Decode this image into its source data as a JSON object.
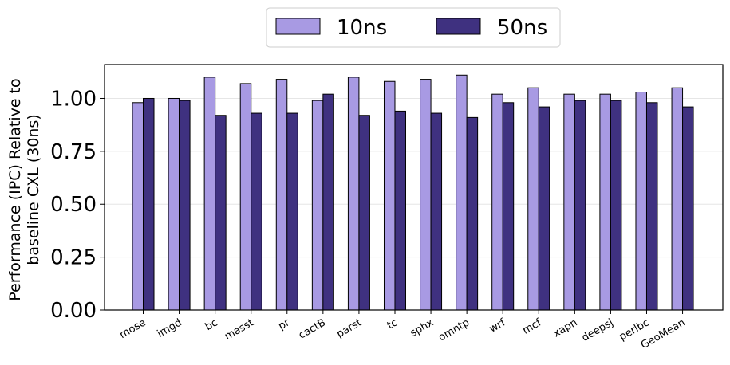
{
  "chart_data": {
    "type": "bar",
    "title": "",
    "xlabel": "",
    "ylabel_line1": "Performance (IPC) Relative to",
    "ylabel_line2": "baseline CXL (30ns)",
    "ylim": [
      0,
      1.16
    ],
    "yticks": [
      "0.00",
      "0.25",
      "0.50",
      "0.75",
      "1.00"
    ],
    "grid": true,
    "legend_position": "top-center",
    "categories": [
      "mose",
      "imgd",
      "bc",
      "masst",
      "pr",
      "cactB",
      "parst",
      "tc",
      "sphx",
      "omntp",
      "wrf",
      "mcf",
      "xapn",
      "deepsj",
      "perlbc",
      "GeoMean"
    ],
    "series": [
      {
        "name": "10ns",
        "color": "#a89ae3",
        "values": [
          0.98,
          1.0,
          1.1,
          1.07,
          1.09,
          0.99,
          1.1,
          1.08,
          1.09,
          1.11,
          1.02,
          1.05,
          1.02,
          1.02,
          1.03,
          1.05
        ]
      },
      {
        "name": "50ns",
        "color": "#3f3180",
        "values": [
          1.0,
          0.99,
          0.92,
          0.93,
          0.93,
          1.02,
          0.92,
          0.94,
          0.93,
          0.91,
          0.98,
          0.96,
          0.99,
          0.99,
          0.98,
          0.96
        ]
      }
    ]
  }
}
